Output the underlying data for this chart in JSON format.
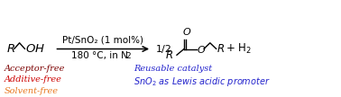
{
  "bg_color": "#ffffff",
  "catalyst_line1": "Pt/SnO₂ (1 mol%)",
  "catalyst_line2": "180 ºC, in N₂",
  "bullet1_text": "Acceptor-free",
  "bullet1_color": "#7B0000",
  "bullet2_text": "Additive-free",
  "bullet2_color": "#CC0000",
  "bullet3_text": "Solvent-free",
  "bullet3_color": "#E87820",
  "bullet4_text": "Reusable catalyst",
  "bullet4_color": "#2222CC",
  "bullet5_color": "#2222CC",
  "font_size_above": 7.5,
  "font_size_below": 7.0,
  "font_size_mol": 9.5,
  "font_size_small": 6.5
}
